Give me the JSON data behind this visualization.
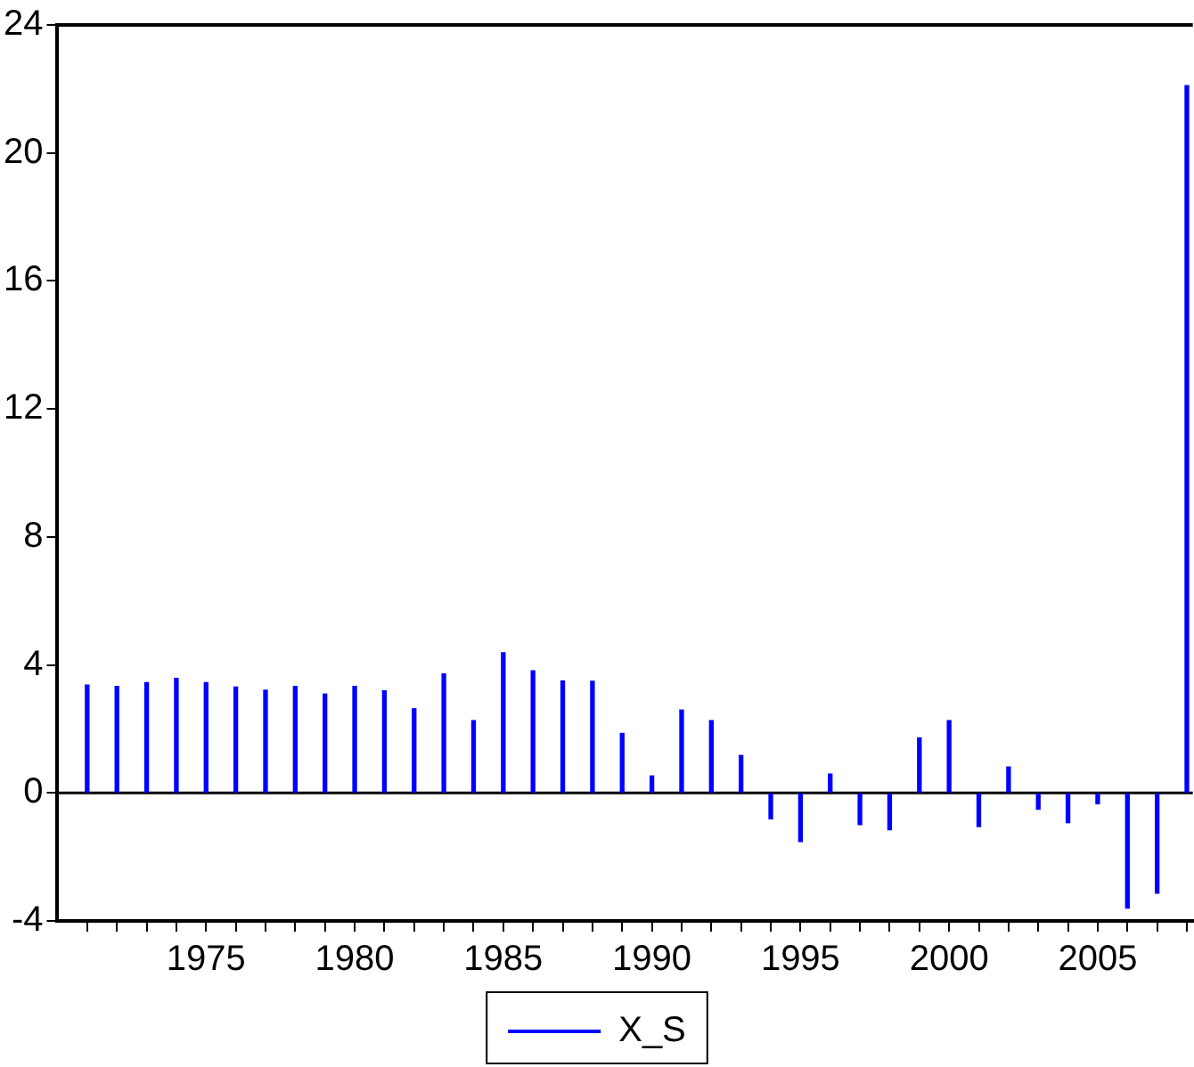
{
  "chart_data": {
    "type": "bar",
    "x": [
      1971,
      1972,
      1973,
      1974,
      1975,
      1976,
      1977,
      1978,
      1979,
      1980,
      1981,
      1982,
      1983,
      1984,
      1985,
      1986,
      1987,
      1988,
      1989,
      1990,
      1991,
      1992,
      1993,
      1994,
      1995,
      1996,
      1997,
      1998,
      1999,
      2000,
      2001,
      2002,
      2003,
      2004,
      2005,
      2006,
      2007,
      2008
    ],
    "series": [
      {
        "name": "X_S",
        "color": "#0000ff",
        "values": [
          3.37,
          3.33,
          3.45,
          3.58,
          3.45,
          3.31,
          3.21,
          3.33,
          3.09,
          3.33,
          3.19,
          2.63,
          3.72,
          2.26,
          4.38,
          3.82,
          3.5,
          3.49,
          1.86,
          0.53,
          2.59,
          2.26,
          1.17,
          -0.81,
          -1.52,
          0.59,
          -0.99,
          -1.15,
          1.72,
          2.26,
          -1.05,
          0.81,
          -0.51,
          -0.93,
          -0.34,
          -3.6,
          -3.13,
          22.1
        ]
      }
    ],
    "xlim": [
      1970,
      2008.2
    ],
    "xticks": [
      {
        "value": 1971,
        "label": null
      },
      {
        "value": 1972,
        "label": null
      },
      {
        "value": 1973,
        "label": null
      },
      {
        "value": 1974,
        "label": null
      },
      1975,
      {
        "value": 1976,
        "label": null
      },
      {
        "value": 1977,
        "label": null
      },
      {
        "value": 1978,
        "label": null
      },
      {
        "value": 1979,
        "label": null
      },
      1980,
      {
        "value": 1981,
        "label": null
      },
      {
        "value": 1982,
        "label": null
      },
      {
        "value": 1983,
        "label": null
      },
      {
        "value": 1984,
        "label": null
      },
      1985,
      {
        "value": 1986,
        "label": null
      },
      {
        "value": 1987,
        "label": null
      },
      {
        "value": 1988,
        "label": null
      },
      {
        "value": 1989,
        "label": null
      },
      1990,
      {
        "value": 1991,
        "label": null
      },
      {
        "value": 1992,
        "label": null
      },
      {
        "value": 1993,
        "label": null
      },
      {
        "value": 1994,
        "label": null
      },
      1995,
      {
        "value": 1996,
        "label": null
      },
      {
        "value": 1997,
        "label": null
      },
      {
        "value": 1998,
        "label": null
      },
      {
        "value": 1999,
        "label": null
      },
      2000,
      {
        "value": 2001,
        "label": null
      },
      {
        "value": 2002,
        "label": null
      },
      {
        "value": 2003,
        "label": null
      },
      {
        "value": 2004,
        "label": null
      },
      2005,
      {
        "value": 2006,
        "label": null
      },
      {
        "value": 2007,
        "label": null
      },
      {
        "value": 2008,
        "label": null
      }
    ],
    "ylim": [
      -4,
      24
    ],
    "yticks": [
      -4,
      0,
      4,
      8,
      12,
      16,
      20,
      24
    ],
    "ref_lines": [
      {
        "axis": "y",
        "value": 0,
        "color": "#000000"
      }
    ],
    "grid": false,
    "legend": "bottom"
  }
}
